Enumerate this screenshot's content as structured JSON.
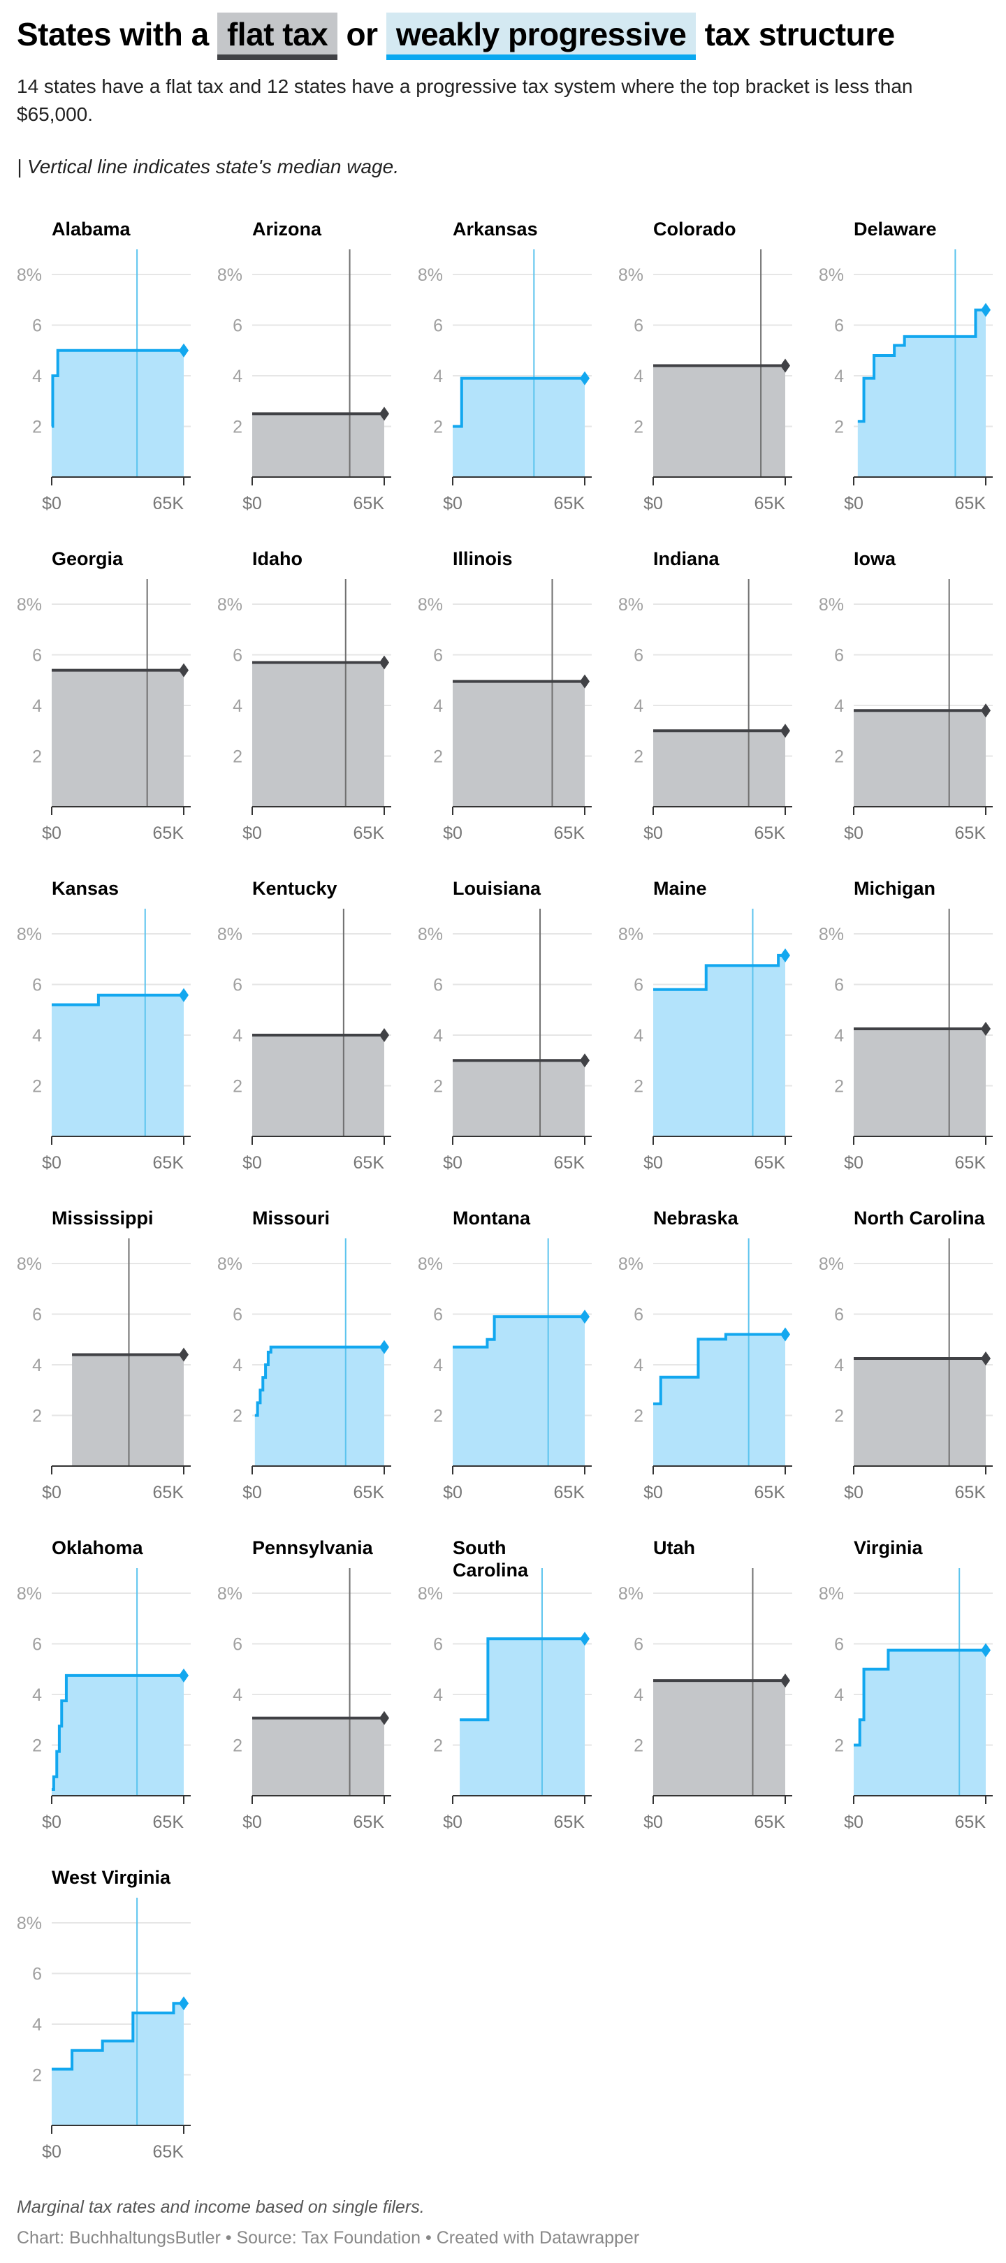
{
  "title": {
    "prefix": "States with a",
    "flat": "flat tax",
    "or": "or",
    "progressive": "weakly progressive",
    "suffix": "tax structure"
  },
  "subtitle": "14 states have a flat tax and 12 states have a progressive tax system where the top bracket is less than $65,000.",
  "note": "| Vertical line indicates state's median wage.",
  "footnote": "Marginal tax rates and income based on single filers.",
  "credit": "Chart: BuchhaltungsButler • Source: Tax Foundation • Created with Datawrapper",
  "colors": {
    "progressive_line": "#12a7ef",
    "progressive_fill": "#b3e3fb",
    "progressive_median": "#5cc4ee",
    "flat_line": "#404145",
    "flat_fill": "#c4c6c9",
    "flat_median": "#707070",
    "grid": "#e6e6e6"
  },
  "chart_data": {
    "type": "area",
    "xlim": [
      0,
      65000
    ],
    "ylim": [
      0,
      8
    ],
    "yticks": [
      "8%",
      "6",
      "4",
      "2"
    ],
    "ytick_values": [
      8,
      6,
      4,
      2
    ],
    "xticks": [
      "$0",
      "65K"
    ],
    "xtick_values": [
      0,
      65000
    ],
    "panels": [
      {
        "state": "Alabama",
        "type": "progressive",
        "median": 42000,
        "steps": [
          [
            0,
            2
          ],
          [
            500,
            4
          ],
          [
            3000,
            5
          ]
        ]
      },
      {
        "state": "Arizona",
        "type": "flat",
        "median": 48000,
        "steps": [
          [
            0,
            2.5
          ]
        ]
      },
      {
        "state": "Arkansas",
        "type": "progressive",
        "median": 40000,
        "steps": [
          [
            0,
            2
          ],
          [
            4400,
            3.9
          ]
        ]
      },
      {
        "state": "Colorado",
        "type": "flat",
        "median": 53000,
        "steps": [
          [
            0,
            4.4
          ]
        ]
      },
      {
        "state": "Delaware",
        "type": "progressive",
        "median": 50000,
        "steps": [
          [
            2000,
            2.2
          ],
          [
            5000,
            3.9
          ],
          [
            10000,
            4.8
          ],
          [
            20000,
            5.2
          ],
          [
            25000,
            5.55
          ],
          [
            60000,
            6.6
          ]
        ]
      },
      {
        "state": "Georgia",
        "type": "flat",
        "median": 47000,
        "steps": [
          [
            0,
            5.39
          ]
        ]
      },
      {
        "state": "Idaho",
        "type": "flat",
        "median": 46000,
        "steps": [
          [
            0,
            5.695
          ]
        ]
      },
      {
        "state": "Illinois",
        "type": "flat",
        "median": 49000,
        "steps": [
          [
            0,
            4.95
          ]
        ]
      },
      {
        "state": "Indiana",
        "type": "flat",
        "median": 47000,
        "steps": [
          [
            0,
            3.0
          ]
        ]
      },
      {
        "state": "Iowa",
        "type": "flat",
        "median": 47000,
        "steps": [
          [
            0,
            3.8
          ]
        ]
      },
      {
        "state": "Kansas",
        "type": "progressive",
        "median": 46000,
        "steps": [
          [
            0,
            5.2
          ],
          [
            23000,
            5.58
          ]
        ]
      },
      {
        "state": "Kentucky",
        "type": "flat",
        "median": 45000,
        "steps": [
          [
            0,
            4.0
          ]
        ]
      },
      {
        "state": "Louisiana",
        "type": "flat",
        "median": 43000,
        "steps": [
          [
            0,
            3.0
          ]
        ]
      },
      {
        "state": "Maine",
        "type": "progressive",
        "median": 49000,
        "steps": [
          [
            0,
            5.8
          ],
          [
            26050,
            6.75
          ],
          [
            61600,
            7.15
          ]
        ]
      },
      {
        "state": "Michigan",
        "type": "flat",
        "median": 47000,
        "steps": [
          [
            0,
            4.25
          ]
        ]
      },
      {
        "state": "Mississippi",
        "type": "flat",
        "median": 38000,
        "steps": [
          [
            10000,
            4.4
          ]
        ]
      },
      {
        "state": "Missouri",
        "type": "progressive",
        "median": 46000,
        "steps": [
          [
            1313,
            2
          ],
          [
            2626,
            2.5
          ],
          [
            3939,
            3
          ],
          [
            5252,
            3.5
          ],
          [
            6565,
            4
          ],
          [
            7878,
            4.5
          ],
          [
            9191,
            4.7
          ]
        ]
      },
      {
        "state": "Montana",
        "type": "progressive",
        "median": 47000,
        "steps": [
          [
            0,
            4.7
          ],
          [
            17000,
            5.0
          ],
          [
            20500,
            5.9
          ]
        ]
      },
      {
        "state": "Nebraska",
        "type": "progressive",
        "median": 47000,
        "steps": [
          [
            0,
            2.46
          ],
          [
            3700,
            3.51
          ],
          [
            22170,
            5.01
          ],
          [
            35730,
            5.2
          ]
        ]
      },
      {
        "state": "North Carolina",
        "type": "flat",
        "median": 47000,
        "steps": [
          [
            0,
            4.25
          ]
        ]
      },
      {
        "state": "Oklahoma",
        "type": "progressive",
        "median": 42000,
        "steps": [
          [
            0,
            0.25
          ],
          [
            1000,
            0.75
          ],
          [
            2500,
            1.75
          ],
          [
            3750,
            2.75
          ],
          [
            4900,
            3.75
          ],
          [
            7200,
            4.75
          ]
        ]
      },
      {
        "state": "Pennsylvania",
        "type": "flat",
        "median": 48000,
        "steps": [
          [
            0,
            3.07
          ]
        ]
      },
      {
        "state": "South Carolina",
        "type": "progressive",
        "median": 44000,
        "steps": [
          [
            3460,
            3
          ],
          [
            17330,
            6.2
          ]
        ]
      },
      {
        "state": "Utah",
        "type": "flat",
        "median": 49000,
        "steps": [
          [
            0,
            4.55
          ]
        ]
      },
      {
        "state": "Virginia",
        "type": "progressive",
        "median": 52000,
        "steps": [
          [
            0,
            2
          ],
          [
            3000,
            3
          ],
          [
            5000,
            5
          ],
          [
            17000,
            5.75
          ]
        ]
      },
      {
        "state": "West Virginia",
        "type": "progressive",
        "median": 42000,
        "steps": [
          [
            0,
            2.22
          ],
          [
            10000,
            2.96
          ],
          [
            25000,
            3.33
          ],
          [
            40000,
            4.44
          ],
          [
            60000,
            4.82
          ]
        ]
      }
    ]
  }
}
